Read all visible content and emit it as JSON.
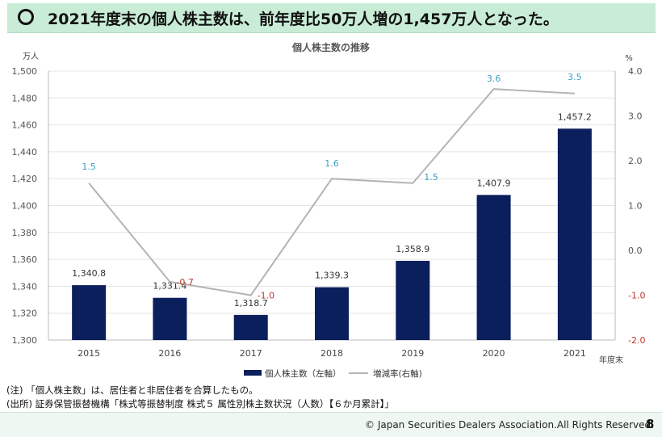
{
  "header": {
    "bullet_icon": "hollow-circle-icon",
    "title": "2021年度末の個人株主数は、前年度比50万人増の1,457万人となった。"
  },
  "chart_data": {
    "type": "bar",
    "title": "個人株主数の推移",
    "categories": [
      "2015",
      "2016",
      "2017",
      "2018",
      "2019",
      "2020",
      "2021"
    ],
    "xlabel": "年度末",
    "y_left": {
      "unit_label": "万人",
      "ylim": [
        1300,
        1500
      ],
      "ticks": [
        "1,300",
        "1,320",
        "1,340",
        "1,360",
        "1,380",
        "1,400",
        "1,420",
        "1,440",
        "1,460",
        "1,480",
        "1,500"
      ]
    },
    "y_right": {
      "unit_label": "%",
      "ylim": [
        -2.0,
        4.0
      ],
      "ticks": [
        "-2.0",
        "-1.0",
        "0.0",
        "1.0",
        "2.0",
        "3.0",
        "4.0"
      ]
    },
    "series": [
      {
        "name": "個人株主数（左軸）",
        "type": "bar",
        "axis": "left",
        "color": "#0b1f5c",
        "values": [
          1340.8,
          1331.4,
          1318.7,
          1339.3,
          1358.9,
          1407.9,
          1457.2
        ],
        "labels": [
          "1,340.8",
          "1,331.4",
          "1,318.7",
          "1,339.3",
          "1,358.9",
          "1,407.9",
          "1,457.2"
        ]
      },
      {
        "name": "増減率(右軸)",
        "type": "line",
        "axis": "right",
        "color": "#b4b4b4",
        "values": [
          1.5,
          -0.7,
          -1.0,
          1.6,
          1.5,
          3.6,
          3.5
        ],
        "labels": [
          "1.5",
          "-0.7",
          "-1.0",
          "1.6",
          "1.5",
          "3.6",
          "3.5"
        ],
        "positive_label_color": "#3aa0c8",
        "negative_label_color": "#c0392b"
      }
    ],
    "grid": true,
    "legend_position": "bottom"
  },
  "notes": [
    "(注) 「個人株主数」は、居住者と非居住者を合算したもの。",
    "(出所) 証券保管振替機構「株式等振替制度 株式５ 属性別株主数状況（人数）【６か月累計】」"
  ],
  "footer": {
    "copyright": "© Japan Securities Dealers Association.All Rights Reserved.",
    "page_number": "8"
  }
}
